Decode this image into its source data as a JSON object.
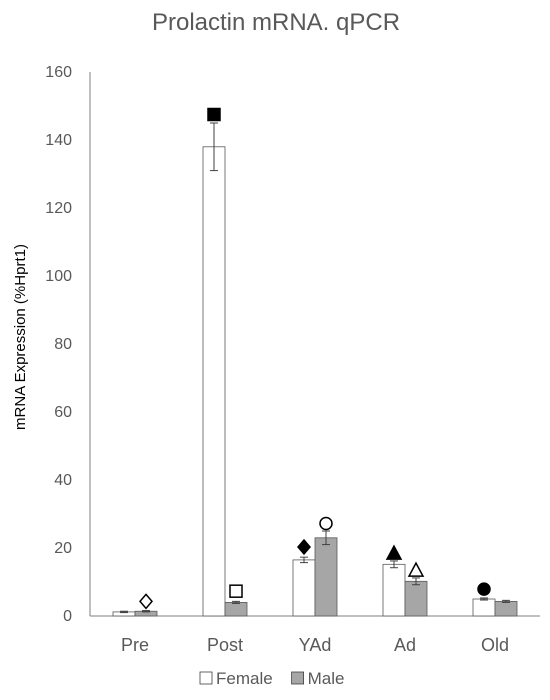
{
  "chart_data": {
    "type": "bar",
    "title": "Prolactin mRNA.  qPCR",
    "xlabel": "",
    "ylabel": "mRNA Expression (%Hprt1)",
    "ylim": [
      0,
      160
    ],
    "yticks": [
      0,
      20,
      40,
      60,
      80,
      100,
      120,
      140,
      160
    ],
    "grid": false,
    "legend_position": "bottom",
    "categories": [
      "Pre",
      "Post",
      "YAd",
      "Ad",
      "Old"
    ],
    "series": [
      {
        "name": "Female",
        "color": "#ffffff",
        "values": [
          1.2,
          138,
          16.5,
          15.2,
          5.0
        ],
        "errors": [
          0.2,
          7,
          0.8,
          1.0,
          0.3
        ]
      },
      {
        "name": "Male",
        "color": "#a6a6a6",
        "values": [
          1.4,
          4.0,
          23.0,
          10.2,
          4.3
        ],
        "errors": [
          0.2,
          0.3,
          2.0,
          1.0,
          0.3
        ]
      }
    ],
    "markers": [
      {
        "category": "Pre",
        "series": "Male",
        "shape": "diamond",
        "filled": false,
        "y": 4.3
      },
      {
        "category": "Post",
        "series": "Female",
        "shape": "square",
        "filled": true,
        "y": 147.5
      },
      {
        "category": "Post",
        "series": "Male",
        "shape": "square",
        "filled": false,
        "y": 7.3
      },
      {
        "category": "YAd",
        "series": "Female",
        "shape": "diamond",
        "filled": true,
        "y": 20.3
      },
      {
        "category": "YAd",
        "series": "Male",
        "shape": "circle",
        "filled": false,
        "y": 27.2
      },
      {
        "category": "Ad",
        "series": "Female",
        "shape": "triangle",
        "filled": true,
        "y": 18.5
      },
      {
        "category": "Ad",
        "series": "Male",
        "shape": "triangle",
        "filled": false,
        "y": 13.5
      },
      {
        "category": "Old",
        "series": "Female",
        "shape": "circle",
        "filled": true,
        "y": 7.9
      }
    ]
  }
}
